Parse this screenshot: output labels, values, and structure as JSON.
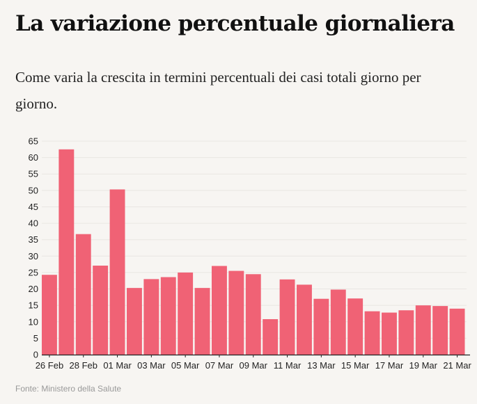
{
  "title": "La variazione percentuale giornaliera",
  "subtitle": "Come varia la crescita in termini percentuali dei casi totali giorno per giorno.",
  "source": "Fonte: Ministero della Salute",
  "colors": {
    "bar": "#f06275",
    "grid": "#e9e6e2",
    "axis": "#222222",
    "text": "#222222"
  },
  "chart_data": {
    "type": "bar",
    "categories": [
      "26 Feb",
      "27 Feb",
      "28 Feb",
      "29 Feb",
      "01 Mar",
      "02 Mar",
      "03 Mar",
      "04 Mar",
      "05 Mar",
      "06 Mar",
      "07 Mar",
      "08 Mar",
      "09 Mar",
      "10 Mar",
      "11 Mar",
      "12 Mar",
      "13 Mar",
      "14 Mar",
      "15 Mar",
      "16 Mar",
      "17 Mar",
      "18 Mar",
      "19 Mar",
      "20 Mar",
      "21 Mar"
    ],
    "values": [
      24.3,
      62.5,
      36.7,
      27.1,
      50.3,
      20.3,
      23.0,
      23.6,
      25.0,
      20.3,
      27.0,
      25.5,
      24.5,
      10.8,
      22.9,
      21.3,
      17.0,
      19.8,
      17.1,
      13.2,
      12.8,
      13.5,
      15.0,
      14.8,
      14.0
    ],
    "xtick_labels": [
      "26 Feb",
      "28 Feb",
      "01 Mar",
      "03 Mar",
      "05 Mar",
      "07 Mar",
      "09 Mar",
      "11 Mar",
      "13 Mar",
      "15 Mar",
      "17 Mar",
      "19 Mar",
      "21 Mar"
    ],
    "yticks": [
      0,
      5,
      10,
      15,
      20,
      25,
      30,
      35,
      40,
      45,
      50,
      55,
      60,
      65
    ],
    "ylim": [
      0,
      65
    ],
    "xlabel": "",
    "ylabel": "",
    "grid": true,
    "legend": false
  }
}
